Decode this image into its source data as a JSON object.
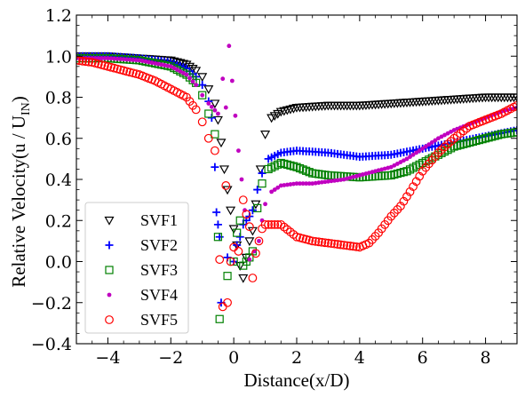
{
  "chart_data": {
    "type": "scatter",
    "xlabel": "Distance(x/D)",
    "ylabel": "Relative Velocity(u / U",
    "ylabel_sub": "IN",
    "ylabel_end": ")",
    "xlim": [
      -5,
      9
    ],
    "ylim": [
      -0.4,
      1.2
    ],
    "xticks": [
      -4,
      -2,
      0,
      2,
      4,
      6,
      8
    ],
    "xtick_labels": [
      "−4",
      "−2",
      "0",
      "2",
      "4",
      "6",
      "8"
    ],
    "yticks": [
      -0.4,
      -0.2,
      0.0,
      0.2,
      0.4,
      0.6,
      0.8,
      1.0,
      1.2
    ],
    "ytick_labels": [
      "−0.4",
      "−0.2",
      "0.0",
      "0.2",
      "0.4",
      "0.6",
      "0.8",
      "1.0",
      "1.2"
    ],
    "grid": false,
    "legend_position": "lower-left",
    "series": [
      {
        "name": "SVF1",
        "marker": "triangle-down",
        "color": "#000000",
        "points": [
          [
            -5.0,
            1.0
          ],
          [
            -4.0,
            1.0
          ],
          [
            -3.0,
            0.99
          ],
          [
            -2.0,
            0.98
          ],
          [
            -1.5,
            0.96
          ],
          [
            -1.2,
            0.93
          ],
          [
            -1.0,
            0.9
          ],
          [
            -0.8,
            0.84
          ],
          [
            -0.6,
            0.77
          ],
          [
            -0.5,
            0.69
          ],
          [
            -0.4,
            0.58
          ],
          [
            -0.3,
            0.45
          ],
          [
            -0.2,
            0.35
          ],
          [
            -0.1,
            0.25
          ],
          [
            0.0,
            0.16
          ],
          [
            0.1,
            0.08
          ],
          [
            0.2,
            -0.02
          ],
          [
            0.3,
            -0.08
          ],
          [
            0.4,
            0.02
          ],
          [
            0.5,
            0.1
          ],
          [
            0.6,
            0.15
          ],
          [
            0.7,
            0.28
          ],
          [
            0.85,
            0.45
          ],
          [
            1.0,
            0.62
          ],
          [
            1.2,
            0.7
          ],
          [
            1.5,
            0.73
          ],
          [
            2.0,
            0.75
          ],
          [
            3.0,
            0.76
          ],
          [
            4.0,
            0.76
          ],
          [
            5.0,
            0.77
          ],
          [
            6.0,
            0.78
          ],
          [
            7.0,
            0.79
          ],
          [
            8.0,
            0.8
          ],
          [
            9.0,
            0.8
          ]
        ]
      },
      {
        "name": "SVF2",
        "marker": "plus",
        "color": "#0000ff",
        "points": [
          [
            -5.0,
            1.0
          ],
          [
            -4.0,
            1.0
          ],
          [
            -3.0,
            0.99
          ],
          [
            -2.0,
            0.97
          ],
          [
            -1.5,
            0.94
          ],
          [
            -1.2,
            0.9
          ],
          [
            -1.0,
            0.86
          ],
          [
            -0.8,
            0.78
          ],
          [
            -0.7,
            0.7
          ],
          [
            -0.6,
            0.46
          ],
          [
            -0.55,
            0.24
          ],
          [
            -0.5,
            0.18
          ],
          [
            -0.45,
            0.12
          ],
          [
            -0.4,
            -0.2
          ],
          [
            -0.2,
            0.02
          ],
          [
            0.0,
            0.0
          ],
          [
            0.1,
            0.08
          ],
          [
            0.2,
            0.12
          ],
          [
            0.3,
            0.18
          ],
          [
            0.4,
            0.2
          ],
          [
            0.5,
            0.22
          ],
          [
            0.6,
            0.25
          ],
          [
            0.75,
            0.35
          ],
          [
            0.9,
            0.43
          ],
          [
            1.1,
            0.5
          ],
          [
            1.5,
            0.53
          ],
          [
            2.0,
            0.54
          ],
          [
            3.0,
            0.53
          ],
          [
            4.0,
            0.51
          ],
          [
            5.0,
            0.52
          ],
          [
            6.0,
            0.55
          ],
          [
            7.0,
            0.58
          ],
          [
            8.0,
            0.61
          ],
          [
            9.0,
            0.64
          ]
        ]
      },
      {
        "name": "SVF3",
        "marker": "square",
        "color": "#008000",
        "points": [
          [
            -5.0,
            0.99
          ],
          [
            -4.0,
            0.99
          ],
          [
            -3.0,
            0.98
          ],
          [
            -2.0,
            0.95
          ],
          [
            -1.5,
            0.91
          ],
          [
            -1.2,
            0.87
          ],
          [
            -1.0,
            0.81
          ],
          [
            -0.8,
            0.72
          ],
          [
            -0.6,
            0.62
          ],
          [
            -0.5,
            0.12
          ],
          [
            -0.45,
            -0.28
          ],
          [
            -0.2,
            -0.07
          ],
          [
            0.0,
            0.0
          ],
          [
            0.1,
            0.14
          ],
          [
            0.2,
            0.2
          ],
          [
            0.3,
            -0.02
          ],
          [
            0.4,
            0.0
          ],
          [
            0.5,
            0.02
          ],
          [
            0.6,
            0.05
          ],
          [
            0.75,
            0.26
          ],
          [
            0.9,
            0.38
          ],
          [
            1.1,
            0.45
          ],
          [
            1.5,
            0.48
          ],
          [
            2.0,
            0.46
          ],
          [
            2.5,
            0.43
          ],
          [
            3.0,
            0.42
          ],
          [
            4.0,
            0.41
          ],
          [
            5.0,
            0.42
          ],
          [
            5.5,
            0.44
          ],
          [
            6.0,
            0.48
          ],
          [
            6.5,
            0.52
          ],
          [
            7.0,
            0.56
          ],
          [
            7.5,
            0.58
          ],
          [
            8.0,
            0.6
          ],
          [
            8.5,
            0.62
          ],
          [
            9.0,
            0.63
          ]
        ]
      },
      {
        "name": "SVF4",
        "marker": "dot",
        "color": "#c000c0",
        "points": [
          [
            -5.0,
            0.99
          ],
          [
            -4.0,
            0.99
          ],
          [
            -3.0,
            0.98
          ],
          [
            -2.0,
            0.95
          ],
          [
            -1.5,
            0.91
          ],
          [
            -1.2,
            0.86
          ],
          [
            -1.0,
            0.81
          ],
          [
            -0.8,
            0.77
          ],
          [
            -0.5,
            0.72
          ],
          [
            -0.35,
            0.89
          ],
          [
            -0.25,
            0.75
          ],
          [
            -0.15,
            1.05
          ],
          [
            0.15,
            0.54
          ],
          [
            0.25,
            0.4
          ],
          [
            0.35,
            0.25
          ],
          [
            0.5,
            0.01
          ],
          [
            0.65,
            0.05
          ],
          [
            0.8,
            0.1
          ],
          [
            0.9,
            0.2
          ],
          [
            1.0,
            0.28
          ],
          [
            1.2,
            0.34
          ],
          [
            1.5,
            0.37
          ],
          [
            2.0,
            0.38
          ],
          [
            2.5,
            0.38
          ],
          [
            3.0,
            0.39
          ],
          [
            3.5,
            0.4
          ],
          [
            4.0,
            0.42
          ],
          [
            4.5,
            0.44
          ],
          [
            5.0,
            0.46
          ],
          [
            5.5,
            0.5
          ],
          [
            6.0,
            0.55
          ],
          [
            6.5,
            0.6
          ],
          [
            7.0,
            0.64
          ],
          [
            7.5,
            0.67
          ],
          [
            8.0,
            0.7
          ],
          [
            8.5,
            0.73
          ],
          [
            9.0,
            0.75
          ]
        ]
      },
      {
        "name": "SVF5",
        "marker": "circle",
        "color": "#ff0000",
        "points": [
          [
            -5.0,
            0.98
          ],
          [
            -4.5,
            0.97
          ],
          [
            -4.0,
            0.95
          ],
          [
            -3.5,
            0.93
          ],
          [
            -3.0,
            0.91
          ],
          [
            -2.5,
            0.88
          ],
          [
            -2.0,
            0.84
          ],
          [
            -1.5,
            0.8
          ],
          [
            -1.2,
            0.74
          ],
          [
            -1.0,
            0.68
          ],
          [
            -0.8,
            0.6
          ],
          [
            -0.6,
            0.54
          ],
          [
            -0.45,
            0.01
          ],
          [
            -0.35,
            -0.22
          ],
          [
            -0.25,
            0.37
          ],
          [
            -0.2,
            -0.2
          ],
          [
            -0.1,
            0.0
          ],
          [
            0.0,
            0.07
          ],
          [
            0.15,
            0.05
          ],
          [
            0.3,
            0.3
          ],
          [
            0.4,
            0.23
          ],
          [
            0.5,
            0.17
          ],
          [
            0.6,
            -0.08
          ],
          [
            0.7,
            0.04
          ],
          [
            0.8,
            0.1
          ],
          [
            0.9,
            0.16
          ],
          [
            1.0,
            0.18
          ],
          [
            1.5,
            0.18
          ],
          [
            2.0,
            0.12
          ],
          [
            2.5,
            0.1
          ],
          [
            3.0,
            0.09
          ],
          [
            3.5,
            0.08
          ],
          [
            4.0,
            0.07
          ],
          [
            4.3,
            0.09
          ],
          [
            4.6,
            0.14
          ],
          [
            5.0,
            0.22
          ],
          [
            5.3,
            0.27
          ],
          [
            5.6,
            0.34
          ],
          [
            6.0,
            0.44
          ],
          [
            6.5,
            0.53
          ],
          [
            7.0,
            0.6
          ],
          [
            7.5,
            0.66
          ],
          [
            8.0,
            0.69
          ],
          [
            8.5,
            0.72
          ],
          [
            9.0,
            0.76
          ]
        ]
      }
    ]
  }
}
